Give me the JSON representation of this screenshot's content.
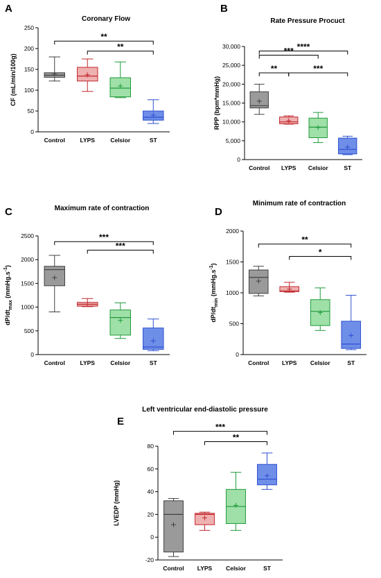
{
  "chart_data": [
    {
      "panel": "A",
      "type": "boxplot",
      "title": "Coronary Flow",
      "ylabel": "CF (mL/min/100g)",
      "ylim": [
        0,
        250
      ],
      "yticks": [
        "0",
        "50",
        "100",
        "150",
        "200",
        "250"
      ],
      "categories": [
        "Control",
        "LYPS",
        "Celsior",
        "ST"
      ],
      "boxes": [
        {
          "min": 122,
          "q1": 131,
          "median": 136,
          "q3": 142,
          "max": 180,
          "mean": 139
        },
        {
          "min": 97,
          "q1": 122,
          "median": 134,
          "q3": 155,
          "max": 175,
          "mean": 137
        },
        {
          "min": 82,
          "q1": 84,
          "median": 105,
          "q3": 130,
          "max": 168,
          "mean": 110
        },
        {
          "min": 20,
          "q1": 28,
          "median": 35,
          "q3": 50,
          "max": 77,
          "mean": 40
        }
      ],
      "significance": [
        {
          "from": "Control",
          "to": "ST",
          "label": "**",
          "y": 218
        },
        {
          "from": "LYPS",
          "to": "ST",
          "label": "**",
          "y": 194
        }
      ]
    },
    {
      "panel": "B",
      "type": "boxplot",
      "title": "Rate Pressure Procuct",
      "ylabel": "RPP (bpm*mmHg)",
      "ylim": [
        0,
        30000
      ],
      "yticks": [
        "0",
        "5,000",
        "10,000",
        "15,000",
        "20,000",
        "25,000",
        "30,000"
      ],
      "categories": [
        "Control",
        "LYPS",
        "Celsior",
        "ST"
      ],
      "boxes": [
        {
          "min": 12000,
          "q1": 13700,
          "median": 14300,
          "q3": 18000,
          "max": 20000,
          "mean": 15500
        },
        {
          "min": 9400,
          "q1": 9500,
          "median": 10000,
          "q3": 11300,
          "max": 11600,
          "mean": 10300
        },
        {
          "min": 4500,
          "q1": 5800,
          "median": 8600,
          "q3": 11000,
          "max": 12500,
          "mean": 8500
        },
        {
          "min": 1300,
          "q1": 1500,
          "median": 2700,
          "q3": 5700,
          "max": 6200,
          "mean": 3300
        }
      ],
      "significance": [
        {
          "from": "Control",
          "to": "ST",
          "label": "****",
          "y": 28800
        },
        {
          "from": "Control",
          "to": "Celsior",
          "label": "***",
          "y": 27700
        },
        {
          "from": "Control",
          "to": "LYPS",
          "label": "**",
          "y": 23000
        },
        {
          "from": "LYPS",
          "to": "ST",
          "label": "***",
          "y": 23000
        }
      ]
    },
    {
      "panel": "C",
      "type": "boxplot",
      "title": "Maximum rate of contraction",
      "ylabel": "dP/dt_max (mmHg.s⁻¹)",
      "ylabel_main": "dP/dt",
      "ylabel_sub": "max",
      "ylabel_rest": " (mmHg.s",
      "ylabel_sup": "-1",
      "ylabel_end": ")",
      "ylim": [
        0,
        2500
      ],
      "yticks": [
        "0",
        "500",
        "1000",
        "1500",
        "2000",
        "2500"
      ],
      "categories": [
        "Control",
        "LYPS",
        "Celsior",
        "ST"
      ],
      "boxes": [
        {
          "min": 900,
          "q1": 1450,
          "median": 1790,
          "q3": 1860,
          "max": 2090,
          "mean": 1620
        },
        {
          "min": 1010,
          "q1": 1020,
          "median": 1060,
          "q3": 1100,
          "max": 1180,
          "mean": 1060
        },
        {
          "min": 340,
          "q1": 410,
          "median": 780,
          "q3": 940,
          "max": 1090,
          "mean": 720
        },
        {
          "min": 80,
          "q1": 110,
          "median": 160,
          "q3": 560,
          "max": 750,
          "mean": 290
        }
      ],
      "significance": [
        {
          "from": "Control",
          "to": "ST",
          "label": "***",
          "y": 2380
        },
        {
          "from": "LYPS",
          "to": "ST",
          "label": "***",
          "y": 2200
        }
      ]
    },
    {
      "panel": "D",
      "type": "boxplot",
      "title": "Minimum rate of contraction",
      "ylabel": "dP/dt_min (mmHg.s⁻¹)",
      "ylabel_main": "dP/dt",
      "ylabel_sub": "min",
      "ylabel_rest": " (mmHg.s",
      "ylabel_sup": "-1",
      "ylabel_end": ")",
      "ylim": [
        0,
        2000
      ],
      "yticks": [
        "0",
        "500",
        "1000",
        "1500",
        "2000"
      ],
      "categories": [
        "Control",
        "LYPS",
        "Celsior",
        "ST"
      ],
      "boxes": [
        {
          "min": 950,
          "q1": 990,
          "median": 1250,
          "q3": 1370,
          "max": 1430,
          "mean": 1190
        },
        {
          "min": 1010,
          "q1": 1020,
          "median": 1030,
          "q3": 1100,
          "max": 1170,
          "mean": 1060
        },
        {
          "min": 390,
          "q1": 470,
          "median": 700,
          "q3": 890,
          "max": 1080,
          "mean": 680
        },
        {
          "min": 80,
          "q1": 100,
          "median": 170,
          "q3": 540,
          "max": 960,
          "mean": 310
        }
      ],
      "significance": [
        {
          "from": "Control",
          "to": "ST",
          "label": "**",
          "y": 1790
        },
        {
          "from": "LYPS",
          "to": "ST",
          "label": "*",
          "y": 1590
        }
      ]
    },
    {
      "panel": "E",
      "type": "boxplot",
      "title": "Left ventricular end-diastolic pressure",
      "ylabel": "LVEDP (mmHg)",
      "ylim": [
        -20,
        80
      ],
      "yticks": [
        "-20",
        "0",
        "20",
        "40",
        "60",
        "80"
      ],
      "categories": [
        "Control",
        "LYPS",
        "Celsior",
        "ST"
      ],
      "boxes": [
        {
          "min": -17,
          "q1": -13,
          "median": 20,
          "q3": 32,
          "max": 34,
          "mean": 11
        },
        {
          "min": 6,
          "q1": 11,
          "median": 20,
          "q3": 21,
          "max": 22,
          "mean": 17
        },
        {
          "min": 6,
          "q1": 12,
          "median": 27,
          "q3": 42,
          "max": 57,
          "mean": 28
        },
        {
          "min": 42,
          "q1": 46,
          "median": 51,
          "q3": 64,
          "max": 74,
          "mean": 54
        }
      ],
      "significance": [
        {
          "from": "Control",
          "to": "ST",
          "label": "***",
          "y": 93
        },
        {
          "from": "LYPS",
          "to": "ST",
          "label": "**",
          "y": 84
        }
      ]
    }
  ],
  "colors": {
    "Control": {
      "stroke": "#404040",
      "fill": "#9a9a9a"
    },
    "LYPS": {
      "stroke": "#c0272d",
      "fill": "#efb0b0"
    },
    "Celsior": {
      "stroke": "#1f9a3a",
      "fill": "#9fe0a8"
    },
    "ST": {
      "stroke": "#2c4fd1",
      "fill": "#6f8ee8"
    }
  }
}
